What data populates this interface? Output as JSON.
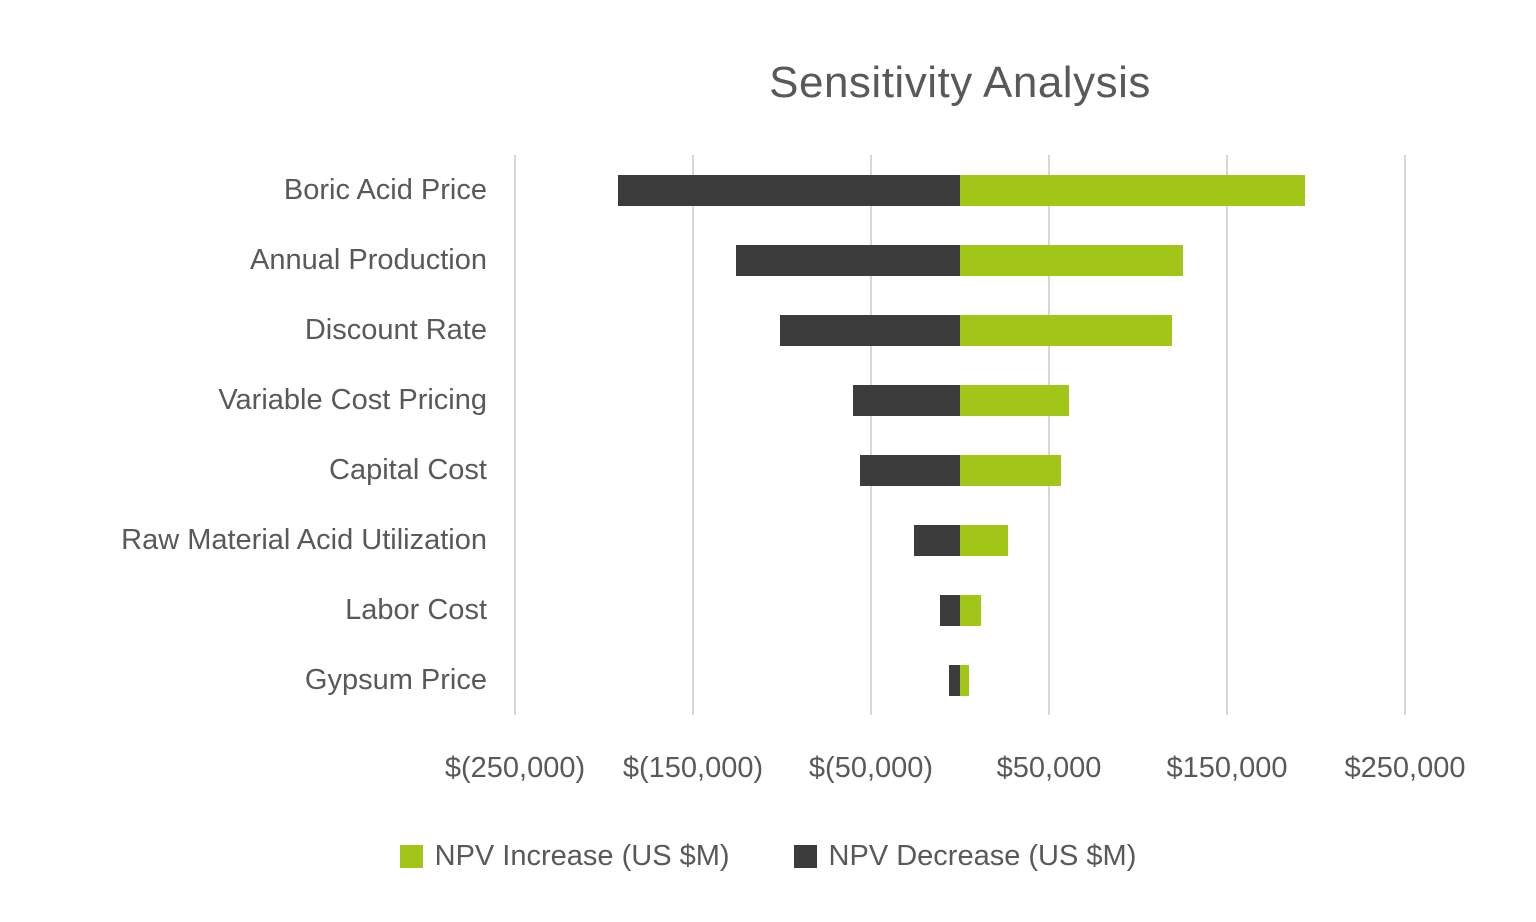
{
  "chart_data": {
    "type": "bar",
    "variant": "tornado-diverging-horizontal",
    "title": "Sensitivity Analysis",
    "categories": [
      "Boric Acid Price",
      "Annual Production",
      "Discount Rate",
      "Variable Cost Pricing",
      "Capital Cost",
      "Raw Material Acid Utilization",
      "Labor Cost",
      "Gypsum Price"
    ],
    "series": [
      {
        "name": "NPV Increase (US $M)",
        "color": "#a2c617",
        "values": [
          194000,
          125000,
          119000,
          61000,
          57000,
          27000,
          12000,
          5000
        ]
      },
      {
        "name": "NPV Decrease (US $M)",
        "color": "#3b3b3b",
        "values": [
          -192000,
          -126000,
          -101000,
          -60000,
          -56000,
          -26000,
          -11000,
          -6000
        ]
      }
    ],
    "xlabel": "",
    "ylabel": "",
    "xlim": [
      -250000,
      250000
    ],
    "x_ticks": [
      {
        "value": -250000,
        "label": "$(250,000)"
      },
      {
        "value": -150000,
        "label": "$(150,000)"
      },
      {
        "value": -50000,
        "label": "$(50,000)"
      },
      {
        "value": 50000,
        "label": "$50,000"
      },
      {
        "value": 150000,
        "label": "$150,000"
      },
      {
        "value": 250000,
        "label": "$250,000"
      }
    ],
    "grid": true,
    "legend_position": "bottom",
    "colors": {
      "text": "#595959",
      "gridline": "#d6d6d6",
      "background": "#ffffff"
    }
  }
}
